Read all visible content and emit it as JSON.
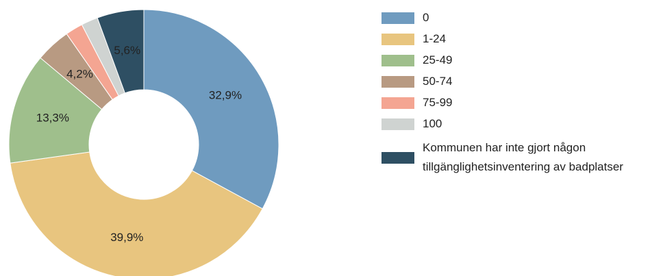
{
  "chart_data": {
    "type": "donut",
    "categories": [
      "0",
      "1-24",
      "25-49",
      "50-74",
      "75-99",
      "100",
      "Kommunen har inte gjort någon tillgänglighetsinventering av badplatser"
    ],
    "values": [
      32.9,
      39.9,
      13.3,
      4.2,
      2.1,
      2.0,
      5.6
    ],
    "value_labels": [
      "32,9%",
      "39,9%",
      "13,3%",
      "4,2%",
      null,
      null,
      "5,6%"
    ],
    "colors": [
      "#6f9bbf",
      "#e8c57f",
      "#9fbf8c",
      "#b89a82",
      "#f4a592",
      "#cfd3d1",
      "#2e4f63"
    ]
  }
}
